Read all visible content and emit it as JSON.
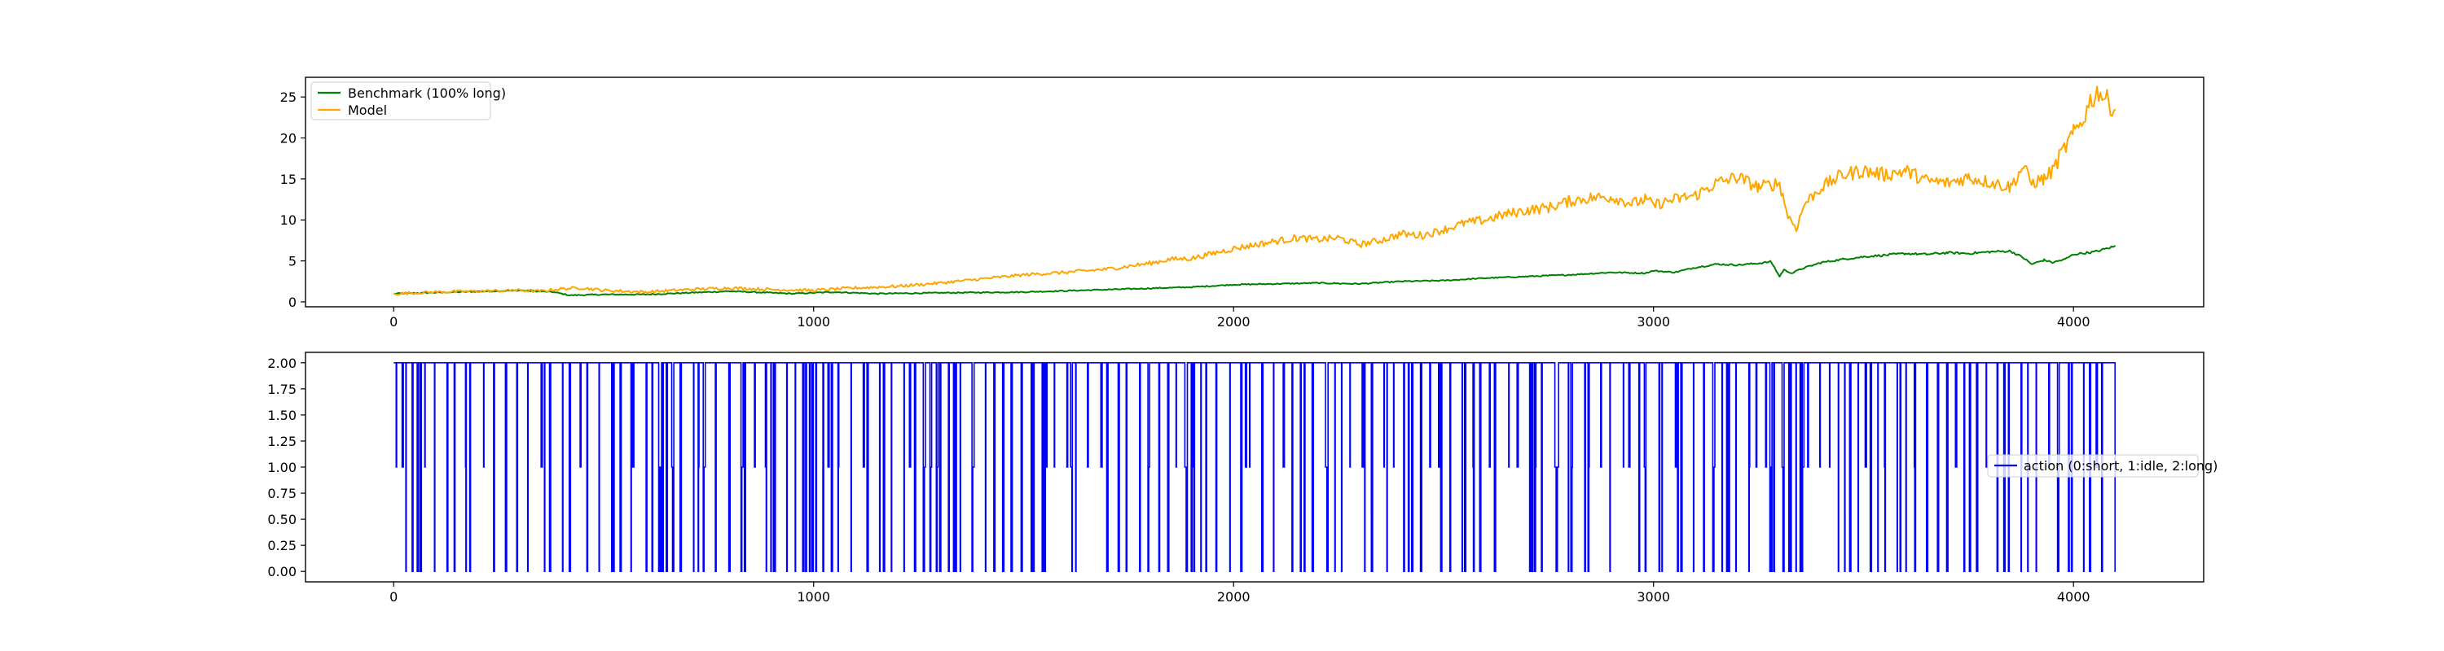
{
  "chart_data": [
    {
      "type": "line",
      "title": "",
      "xlabel": "",
      "ylabel": "",
      "xlim": [
        -210,
        4310
      ],
      "ylim": [
        -0.6,
        27.4
      ],
      "x_ticks": [
        0,
        1000,
        2000,
        3000,
        4000
      ],
      "y_ticks": [
        0,
        5,
        10,
        15,
        20,
        25
      ],
      "grid": false,
      "legend_position": "upper-left",
      "series": [
        {
          "name": "Benchmark (100% long)",
          "color": "#008000",
          "x": [
            0,
            150,
            300,
            380,
            420,
            500,
            600,
            800,
            950,
            1050,
            1150,
            1300,
            1500,
            1700,
            1900,
            2000,
            2100,
            2200,
            2300,
            2400,
            2500,
            2600,
            2700,
            2800,
            2900,
            2980,
            3000,
            3050,
            3100,
            3150,
            3200,
            3250,
            3280,
            3300,
            3310,
            3330,
            3350,
            3400,
            3450,
            3500,
            3550,
            3600,
            3650,
            3700,
            3750,
            3800,
            3850,
            3880,
            3900,
            3930,
            3950,
            3980,
            4000,
            4050,
            4100
          ],
          "values": [
            1.0,
            1.2,
            1.4,
            1.2,
            0.8,
            0.9,
            0.9,
            1.3,
            1.0,
            1.2,
            1.0,
            1.1,
            1.2,
            1.5,
            1.8,
            2.1,
            2.2,
            2.3,
            2.2,
            2.5,
            2.6,
            2.9,
            3.1,
            3.3,
            3.6,
            3.5,
            3.8,
            3.6,
            4.2,
            4.6,
            4.5,
            4.7,
            4.9,
            3.1,
            3.9,
            3.5,
            4.0,
            4.8,
            5.2,
            5.5,
            5.7,
            5.9,
            5.8,
            6.0,
            5.9,
            6.1,
            6.2,
            5.4,
            4.6,
            5.1,
            4.8,
            5.2,
            5.8,
            6.1,
            6.8
          ]
        },
        {
          "name": "Model",
          "color": "#ffa500",
          "x": [
            0,
            100,
            200,
            300,
            350,
            400,
            450,
            500,
            600,
            700,
            800,
            900,
            1000,
            1100,
            1200,
            1300,
            1400,
            1500,
            1600,
            1700,
            1800,
            1850,
            1900,
            2000,
            2100,
            2150,
            2200,
            2250,
            2300,
            2350,
            2400,
            2450,
            2500,
            2550,
            2600,
            2650,
            2700,
            2750,
            2800,
            2850,
            2900,
            2950,
            2980,
            3000,
            3050,
            3100,
            3150,
            3200,
            3250,
            3300,
            3320,
            3340,
            3360,
            3400,
            3450,
            3500,
            3550,
            3600,
            3650,
            3700,
            3750,
            3800,
            3850,
            3880,
            3900,
            3930,
            3950,
            3970,
            4000,
            4020,
            4040,
            4060,
            4080,
            4100
          ],
          "values": [
            1.0,
            1.2,
            1.3,
            1.4,
            1.3,
            1.6,
            1.7,
            1.4,
            1.2,
            1.5,
            1.7,
            1.5,
            1.4,
            1.7,
            1.9,
            2.3,
            2.8,
            3.3,
            3.6,
            4.0,
            4.7,
            5.2,
            5.3,
            6.5,
            7.4,
            7.8,
            7.6,
            7.8,
            7.0,
            7.5,
            8.3,
            8.1,
            8.8,
            9.6,
            10.0,
            10.7,
            11.2,
            11.5,
            12.3,
            12.7,
            12.8,
            12.0,
            12.5,
            11.8,
            12.5,
            13.0,
            14.5,
            15.2,
            14.0,
            14.5,
            10.5,
            9.0,
            12.0,
            14.0,
            15.5,
            16.0,
            15.5,
            16.0,
            14.8,
            14.5,
            15.2,
            14.6,
            14.0,
            16.5,
            14.5,
            15.0,
            16.0,
            18.0,
            20.5,
            22.0,
            24.5,
            25.8,
            24.5,
            23.5
          ]
        }
      ]
    },
    {
      "type": "line",
      "title": "",
      "xlabel": "",
      "ylabel": "",
      "xlim": [
        -210,
        4310
      ],
      "ylim": [
        -0.1,
        2.1
      ],
      "x_ticks": [
        0,
        1000,
        2000,
        3000,
        4000
      ],
      "y_ticks": [
        0.0,
        0.25,
        0.5,
        0.75,
        1.0,
        1.25,
        1.5,
        1.75,
        2.0
      ],
      "y_tick_labels": [
        "0.00",
        "0.25",
        "0.50",
        "0.75",
        "1.00",
        "1.25",
        "1.50",
        "1.75",
        "2.00"
      ],
      "grid": false,
      "legend_position": "center-right",
      "step_count": 4100,
      "series": [
        {
          "name": "action (0:short, 1:idle, 2:long)",
          "color": "#0000ff",
          "x_max": 4100,
          "value_range": [
            0,
            2
          ]
        }
      ]
    }
  ]
}
